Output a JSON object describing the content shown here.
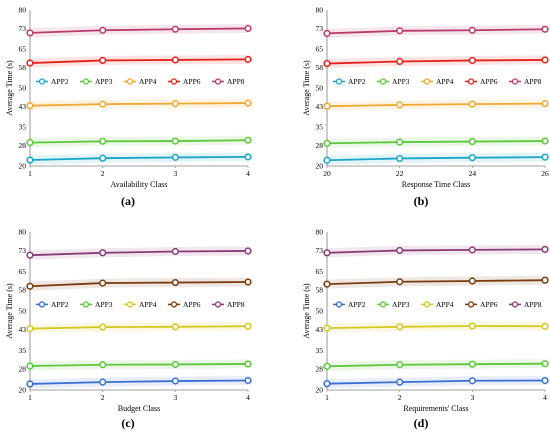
{
  "chart_data": [
    {
      "type": "line",
      "panel_label": "(a)",
      "xlabel": "Availability Class",
      "ylabel": "Average Time (s)",
      "x": [
        1,
        2,
        3,
        4
      ],
      "xticks": [
        "1",
        "2",
        "3",
        "4"
      ],
      "ylim": [
        20,
        80
      ],
      "yticks": [
        "20",
        "28",
        "35",
        "43",
        "50",
        "58",
        "65",
        "73",
        "80"
      ],
      "grid": false,
      "legend_placement": "middle",
      "series": [
        {
          "name": "APP2",
          "color": "#1aa6c8",
          "values": [
            22.3,
            23.0,
            23.3,
            23.5
          ]
        },
        {
          "name": "APP3",
          "color": "#5cc83c",
          "values": [
            29.0,
            29.5,
            29.6,
            29.9
          ]
        },
        {
          "name": "APP4",
          "color": "#f0a830",
          "values": [
            43.2,
            43.8,
            44.0,
            44.2
          ]
        },
        {
          "name": "APP6",
          "color": "#e2231a",
          "values": [
            59.6,
            60.6,
            60.8,
            61.0
          ]
        },
        {
          "name": "APP8",
          "color": "#b83a6e",
          "values": [
            71.2,
            72.2,
            72.6,
            72.9
          ]
        }
      ]
    },
    {
      "type": "line",
      "panel_label": "(b)",
      "xlabel": "Response Time Class",
      "ylabel": "Average Time (s)",
      "x": [
        20,
        22,
        24,
        26
      ],
      "xticks": [
        "20",
        "22",
        "24",
        "26"
      ],
      "ylim": [
        20,
        80
      ],
      "yticks": [
        "20",
        "28",
        "35",
        "43",
        "50",
        "58",
        "65",
        "73",
        "80"
      ],
      "grid": false,
      "legend_placement": "middle",
      "series": [
        {
          "name": "APP2",
          "color": "#1aa6c8",
          "values": [
            22.2,
            22.9,
            23.2,
            23.4
          ]
        },
        {
          "name": "APP3",
          "color": "#5cc83c",
          "values": [
            28.7,
            29.2,
            29.4,
            29.6
          ]
        },
        {
          "name": "APP4",
          "color": "#f0a830",
          "values": [
            43.0,
            43.5,
            43.8,
            44.0
          ]
        },
        {
          "name": "APP6",
          "color": "#e2231a",
          "values": [
            59.4,
            60.2,
            60.6,
            60.8
          ]
        },
        {
          "name": "APP8",
          "color": "#b83a6e",
          "values": [
            71.0,
            72.0,
            72.2,
            72.6
          ]
        }
      ]
    },
    {
      "type": "line",
      "panel_label": "(c)",
      "xlabel": "Budget Class",
      "ylabel": "Average Time (s)",
      "x": [
        1,
        2,
        3,
        4
      ],
      "xticks": [
        "1",
        "2",
        "3",
        "4"
      ],
      "ylim": [
        20,
        80
      ],
      "yticks": [
        "20",
        "28",
        "35",
        "43",
        "50",
        "58",
        "65",
        "73",
        "80"
      ],
      "grid": false,
      "legend_placement": "middle",
      "series": [
        {
          "name": "APP2",
          "color": "#3a6fd0",
          "values": [
            22.3,
            23.0,
            23.4,
            23.6
          ]
        },
        {
          "name": "APP3",
          "color": "#5cc83c",
          "values": [
            29.1,
            29.6,
            29.7,
            29.9
          ]
        },
        {
          "name": "APP4",
          "color": "#d6c81e",
          "values": [
            43.3,
            43.9,
            44.0,
            44.2
          ]
        },
        {
          "name": "APP6",
          "color": "#7a3c10",
          "values": [
            59.4,
            60.6,
            60.8,
            61.0
          ]
        },
        {
          "name": "APP8",
          "color": "#8a3c78",
          "values": [
            71.2,
            72.1,
            72.6,
            72.8
          ]
        }
      ]
    },
    {
      "type": "line",
      "panel_label": "(d)",
      "xlabel": "Requirements' Class",
      "ylabel": "Average Time (s)",
      "x": [
        1,
        2,
        3,
        4
      ],
      "xticks": [
        "1",
        "2",
        "3",
        "4"
      ],
      "ylim": [
        20,
        80
      ],
      "yticks": [
        "20",
        "28",
        "35",
        "43",
        "50",
        "58",
        "65",
        "73",
        "80"
      ],
      "grid": false,
      "legend_placement": "middle",
      "series": [
        {
          "name": "APP2",
          "color": "#3a6fd0",
          "values": [
            22.4,
            23.0,
            23.5,
            23.6
          ]
        },
        {
          "name": "APP3",
          "color": "#5cc83c",
          "values": [
            29.0,
            29.6,
            29.8,
            30.0
          ]
        },
        {
          "name": "APP4",
          "color": "#d6c81e",
          "values": [
            43.5,
            44.0,
            44.3,
            44.2
          ]
        },
        {
          "name": "APP6",
          "color": "#7a3c10",
          "values": [
            60.2,
            61.1,
            61.4,
            61.7
          ]
        },
        {
          "name": "APP8",
          "color": "#8a3c78",
          "values": [
            72.1,
            73.0,
            73.2,
            73.4
          ]
        }
      ]
    }
  ]
}
